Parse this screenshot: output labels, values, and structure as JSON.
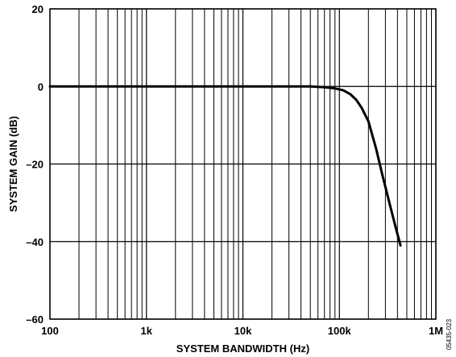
{
  "chart_data": {
    "type": "line",
    "xlabel": "SYSTEM BANDWIDTH (Hz)",
    "ylabel": "SYSTEM GAIN (dB)",
    "x_scale": "log",
    "xlim": [
      100,
      1000000
    ],
    "ylim": [
      -60,
      20
    ],
    "x_ticks": [
      {
        "value": 100,
        "label": "100"
      },
      {
        "value": 1000,
        "label": "1k"
      },
      {
        "value": 10000,
        "label": "10k"
      },
      {
        "value": 100000,
        "label": "100k"
      },
      {
        "value": 1000000,
        "label": "1M"
      }
    ],
    "y_ticks": [
      {
        "value": 20,
        "label": "20"
      },
      {
        "value": 0,
        "label": "0"
      },
      {
        "value": -20,
        "label": "–20"
      },
      {
        "value": -40,
        "label": "–40"
      },
      {
        "value": -60,
        "label": "–60"
      }
    ],
    "grid": true,
    "series": [
      {
        "color": "#000000",
        "x": [
          100,
          1000,
          10000,
          50000,
          70000,
          90000,
          110000,
          130000,
          150000,
          170000,
          200000,
          240000,
          280000,
          330000,
          380000,
          430000
        ],
        "y": [
          0,
          0,
          0,
          0,
          -0.2,
          -0.5,
          -1,
          -2,
          -3.5,
          -5.5,
          -9,
          -16,
          -23,
          -30,
          -36,
          -41
        ]
      }
    ]
  },
  "figure_code": "05435-023"
}
